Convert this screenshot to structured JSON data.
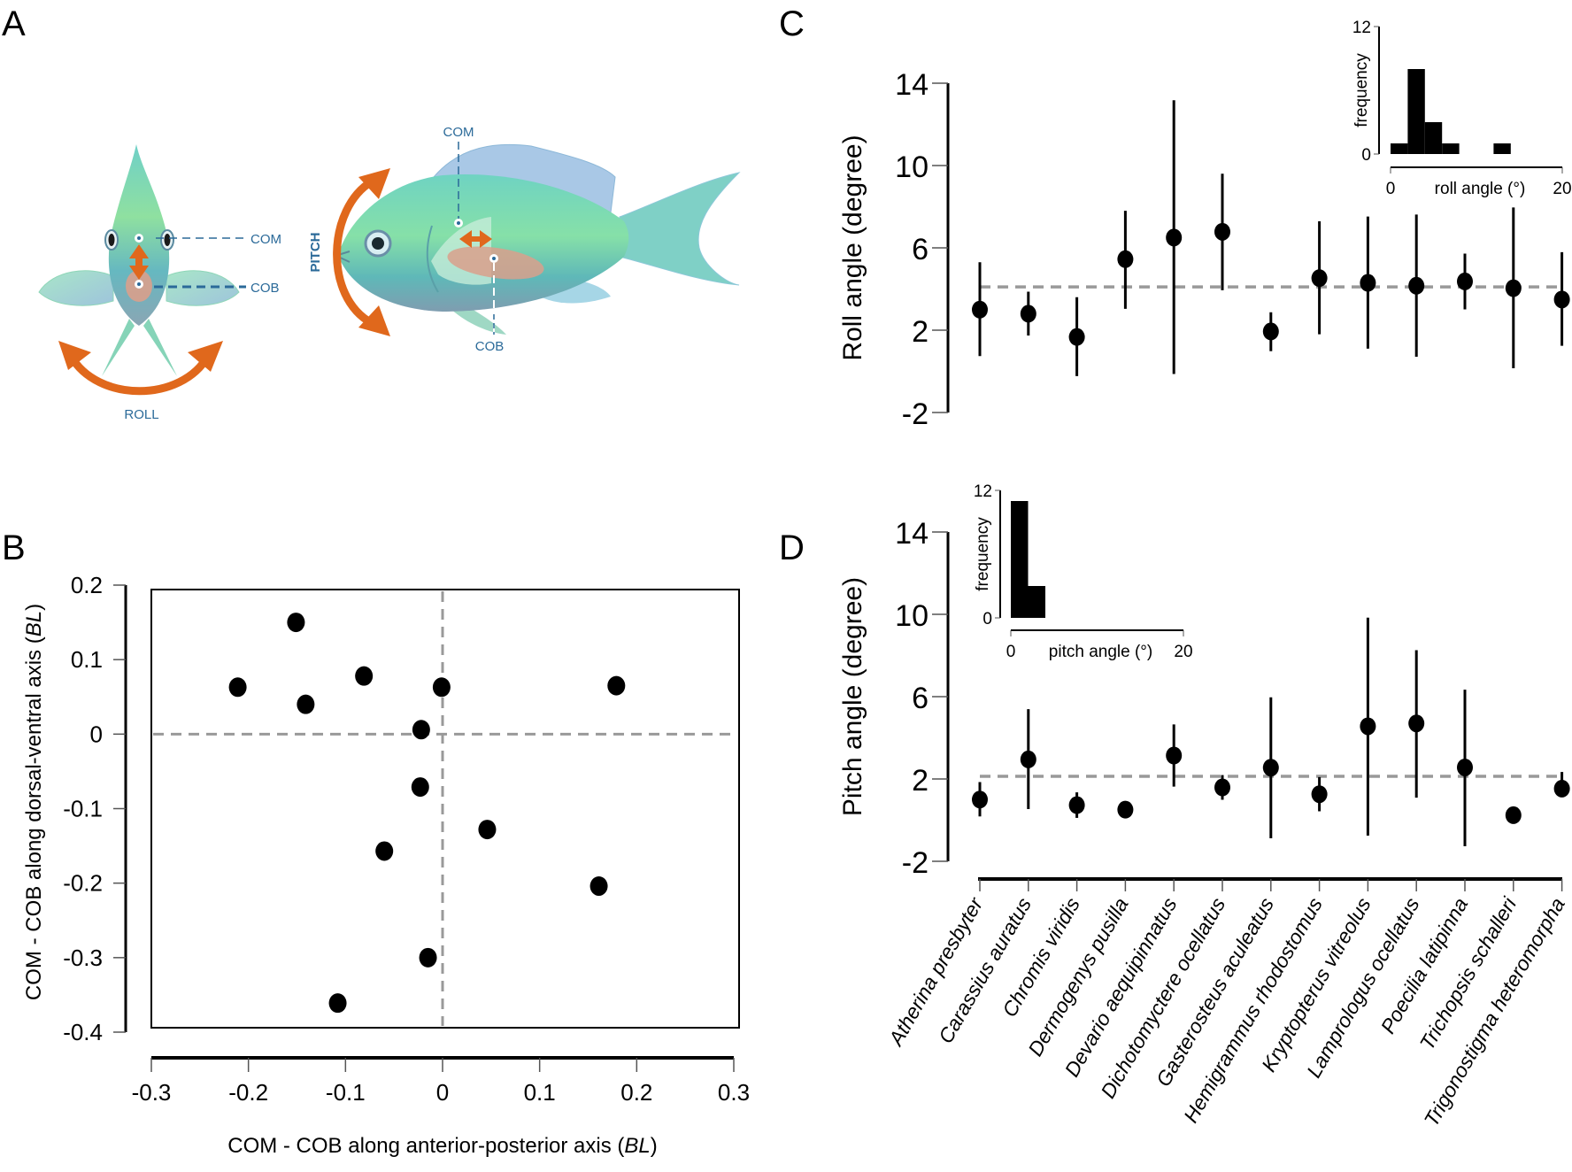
{
  "figure": {
    "panel_letters": {
      "a": "A",
      "b": "B",
      "c": "C",
      "d": "D"
    }
  },
  "diagram": {
    "front_fish": {
      "com_label": "COM",
      "cob_label": "COB",
      "rotation_label": "ROLL"
    },
    "side_fish": {
      "com_label": "COM",
      "cob_label": "COB",
      "rotation_label": "PITCH"
    },
    "colors": {
      "arrow": "#e0681c",
      "label": "#2b6a99",
      "body_top": "#7fe0b0",
      "body_mid": "#5cc8c0",
      "body_low": "#7a9fb0",
      "cob_blob": "#d9a08c"
    }
  },
  "chart_data": [
    {
      "id": "B",
      "type": "scatter",
      "title": "",
      "xlabel": "COM - COB along anterior-posterior axis",
      "xlabel_unit": "BL",
      "ylabel": "COM - COB along dorsal-ventral axis",
      "ylabel_unit": "BL",
      "xlim": [
        -0.3,
        0.3
      ],
      "ylim": [
        -0.4,
        0.2
      ],
      "xticks": [
        "-0.3",
        "-0.2",
        "-0.1",
        "0",
        "0.1",
        "0.2",
        "0.3"
      ],
      "yticks": [
        "0.2",
        "0.1",
        "0",
        "-0.1",
        "-0.2",
        "-0.3",
        "-0.4"
      ],
      "reference_lines": {
        "x": 0,
        "y": 0
      },
      "points": [
        {
          "x": -0.211,
          "y": 0.063
        },
        {
          "x": -0.151,
          "y": 0.15
        },
        {
          "x": -0.141,
          "y": 0.04
        },
        {
          "x": -0.081,
          "y": 0.078
        },
        {
          "x": -0.001,
          "y": 0.063
        },
        {
          "x": 0.179,
          "y": 0.065
        },
        {
          "x": -0.022,
          "y": 0.006
        },
        {
          "x": -0.023,
          "y": -0.071
        },
        {
          "x": 0.046,
          "y": -0.128
        },
        {
          "x": -0.06,
          "y": -0.157
        },
        {
          "x": 0.161,
          "y": -0.204
        },
        {
          "x": -0.015,
          "y": -0.3
        },
        {
          "x": -0.108,
          "y": -0.361
        }
      ]
    },
    {
      "id": "C",
      "type": "scatter",
      "subtype": "point-errorbar",
      "ylabel": "Roll angle (degree)",
      "ylim": [
        -2,
        14
      ],
      "yticks": [
        "14",
        "10",
        "6",
        "2",
        "-2"
      ],
      "mean_line": 4.1,
      "categories": [
        "Atherina presbyter",
        "Carassius auratus",
        "Chromis viridis",
        "Dermogenys pusilla",
        "Devario aequipinnatus",
        "Dichotomyctere ocellatus",
        "Gasterosteus aculeatus",
        "Hemigrammus rhodostomus",
        "Kryptopterus vitreolus",
        "Lamprologus ocellatus",
        "Poecilia latipinna",
        "Trichopsis schalleri",
        "Trigonostigma heteromorpha"
      ],
      "values": [
        3.0,
        2.8,
        1.67,
        5.45,
        6.5,
        6.78,
        1.94,
        4.53,
        4.3,
        4.16,
        4.37,
        4.04,
        3.49
      ],
      "err_high": [
        5.3,
        3.87,
        3.6,
        7.8,
        13.17,
        9.6,
        2.87,
        7.29,
        7.52,
        7.62,
        5.72,
        7.96,
        5.79
      ],
      "err_low": [
        0.74,
        1.74,
        -0.23,
        3.04,
        -0.13,
        3.94,
        0.98,
        1.8,
        1.1,
        0.71,
        3.01,
        0.15,
        1.24
      ],
      "inset": {
        "type": "bar",
        "xlabel": "roll angle (°)",
        "ylabel": "frequency",
        "xlim": [
          0,
          20
        ],
        "ylim": [
          0,
          12
        ],
        "xticks": [
          "0",
          "20"
        ],
        "yticks": [
          "12",
          "0"
        ],
        "bins": [
          [
            0,
            2
          ],
          [
            2,
            4
          ],
          [
            4,
            6
          ],
          [
            6,
            8
          ],
          [
            12,
            14
          ]
        ],
        "counts": [
          1,
          8,
          3,
          1,
          1
        ]
      }
    },
    {
      "id": "D",
      "type": "scatter",
      "subtype": "point-errorbar",
      "ylabel": "Pitch angle (degree)",
      "ylim": [
        -2,
        14
      ],
      "yticks": [
        "14",
        "10",
        "6",
        "2",
        "-2"
      ],
      "mean_line": 2.13,
      "categories": [
        "Atherina presbyter",
        "Carassius auratus",
        "Chromis viridis",
        "Dermogenys pusilla",
        "Devario aequipinnatus",
        "Dichotomyctere ocellatus",
        "Gasterosteus aculeatus",
        "Hemigrammus rhodostomus",
        "Kryptopterus vitreolus",
        "Lamprologus ocellatus",
        "Poecilia latipinna",
        "Trichopsis schalleri",
        "Trigonostigma heteromorpha"
      ],
      "values": [
        1.0,
        2.95,
        0.73,
        0.51,
        3.14,
        1.59,
        2.55,
        1.26,
        4.56,
        4.7,
        2.56,
        0.24,
        1.53
      ],
      "err_high": [
        1.85,
        5.39,
        1.35,
        null,
        4.65,
        2.19,
        5.97,
        2.09,
        9.84,
        8.26,
        6.34,
        null,
        2.34
      ],
      "err_low": [
        0.18,
        0.54,
        0.11,
        null,
        1.63,
        0.99,
        -0.88,
        0.43,
        -0.75,
        1.09,
        -1.27,
        null,
        1.12
      ],
      "inset": {
        "type": "bar",
        "xlabel": "pitch angle (°)",
        "ylabel": "frequency",
        "xlim": [
          0,
          20
        ],
        "ylim": [
          0,
          12
        ],
        "xticks": [
          "0",
          "20"
        ],
        "yticks": [
          "12",
          "0"
        ],
        "bins": [
          [
            0,
            2
          ],
          [
            2,
            4
          ]
        ],
        "counts": [
          11,
          3
        ]
      }
    }
  ]
}
